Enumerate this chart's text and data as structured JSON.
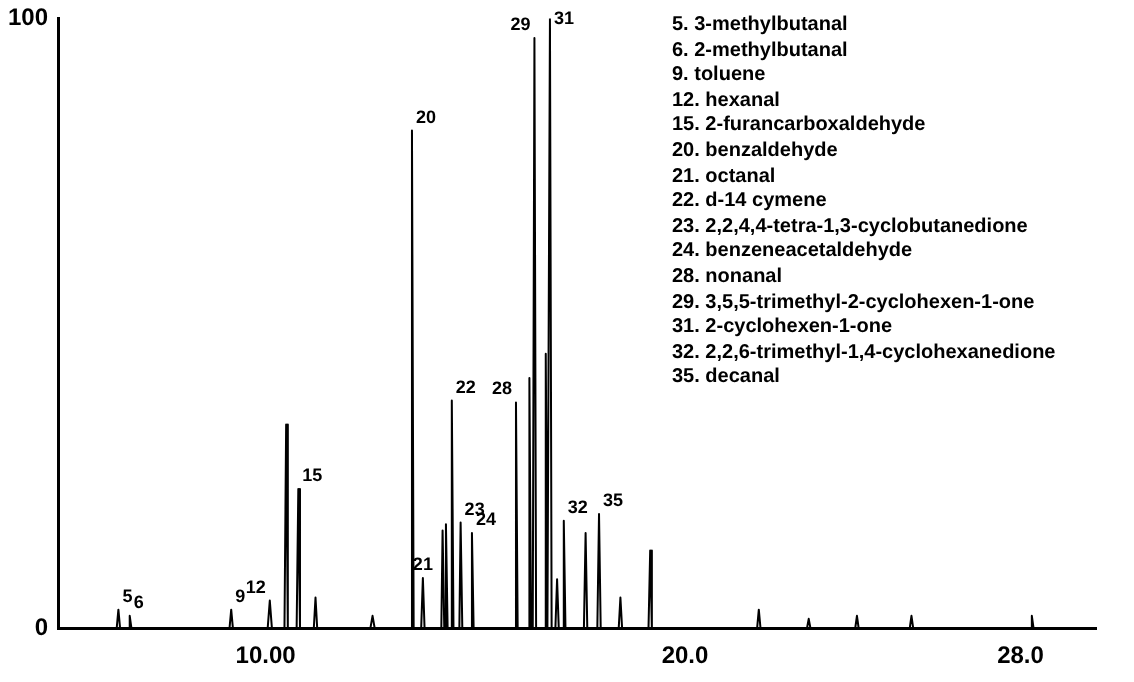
{
  "chart_data": {
    "type": "line",
    "xlim": [
      5.05,
      29.8
    ],
    "ylim": [
      0,
      100
    ],
    "xticks": [
      {
        "value": 10,
        "label": "10.00"
      },
      {
        "value": 20,
        "label": "20.0"
      },
      {
        "value": 28,
        "label": "28.0"
      }
    ],
    "yticks": [
      0,
      100
    ],
    "grid": false,
    "legend": false,
    "marker": "none",
    "line_style": "solid",
    "series": [
      {
        "color": "#000000",
        "x": [
          5.1,
          6.0,
          6.45,
          6.49,
          6.53,
          6.72,
          6.76,
          6.8,
          8.0,
          9.14,
          9.18,
          9.22,
          10.05,
          10.1,
          10.15,
          10.45,
          10.49,
          10.53,
          10.74,
          10.78,
          10.82,
          11.15,
          11.19,
          11.23,
          12.5,
          12.55,
          12.6,
          13.2,
          13.45,
          13.49,
          13.53,
          13.71,
          13.75,
          13.79,
          14.19,
          14.22,
          14.26,
          14.3,
          14.34,
          14.41,
          14.44,
          14.48,
          14.62,
          14.65,
          14.69,
          14.89,
          14.92,
          14.96,
          15.93,
          15.97,
          16.01,
          16.26,
          16.29,
          16.33,
          16.37,
          16.41,
          16.45,
          16.55,
          16.64,
          16.68,
          16.72,
          16.78,
          16.82,
          16.91,
          16.95,
          16.99,
          17.07,
          17.11,
          17.15,
          17.59,
          17.63,
          17.67,
          17.91,
          17.95,
          17.99,
          18.42,
          18.46,
          18.5,
          19.13,
          19.17,
          19.21,
          21.72,
          21.76,
          21.8,
          22.91,
          22.95,
          22.99,
          24.06,
          24.1,
          24.14,
          25.36,
          25.4,
          25.44,
          28.23,
          28.27,
          28.31,
          29.0
        ],
        "values": [
          0,
          0,
          0,
          3,
          0,
          0,
          2,
          0,
          0,
          0,
          3,
          0,
          0,
          4.5,
          0,
          0,
          33.4,
          0,
          0,
          22.8,
          0,
          0,
          5,
          0,
          0,
          2,
          0,
          0,
          0,
          81.6,
          0,
          0,
          8.2,
          0,
          0,
          16,
          0,
          17,
          0,
          0,
          37.3,
          0,
          0,
          17.3,
          0,
          0,
          15.6,
          0,
          0,
          37,
          0,
          0,
          41,
          0,
          0,
          96.8,
          0,
          0,
          0,
          45,
          0,
          100,
          0,
          0,
          8,
          0,
          0,
          17.6,
          0,
          0,
          15.6,
          0,
          0,
          18.7,
          0,
          0,
          5,
          0,
          0,
          12.7,
          0,
          0,
          3,
          0,
          0,
          1.5,
          0,
          0,
          2,
          0,
          0,
          2,
          0,
          0,
          2,
          0,
          0
        ]
      }
    ],
    "annotations": [
      {
        "text": "5",
        "x": 6.49,
        "y": 3
      },
      {
        "text": "6",
        "x": 6.76,
        "y": 2
      },
      {
        "text": "9",
        "x": 9.18,
        "y": 3
      },
      {
        "text": "12",
        "x": 10.1,
        "y": 4.5
      },
      {
        "text": "15",
        "x": 10.78,
        "y": 22.8
      },
      {
        "text": "20",
        "x": 13.49,
        "y": 81.6
      },
      {
        "text": "21",
        "x": 13.75,
        "y": 8.2
      },
      {
        "text": "22",
        "x": 14.44,
        "y": 37.3
      },
      {
        "text": "23",
        "x": 14.65,
        "y": 17.3
      },
      {
        "text": "24",
        "x": 14.92,
        "y": 15.6
      },
      {
        "text": "28",
        "x": 15.97,
        "y": 37
      },
      {
        "text": "29",
        "x": 16.41,
        "y": 96.8
      },
      {
        "text": "31",
        "x": 16.78,
        "y": 100
      },
      {
        "text": "32",
        "x": 17.11,
        "y": 17.6
      },
      {
        "text": "35",
        "x": 17.95,
        "y": 18.7
      },
      "5. 3-methylbutanal",
      "6. 2-methylbutanal",
      "9. toluene",
      "12. hexanal",
      "15. 2-furancarboxaldehyde",
      "20. benzaldehyde",
      "21. octanal",
      "22. d-14 cymene",
      "23. 2,2,4,4-tetra-1,3-cyclobutanedione",
      "24. benzeneacetaldehyde",
      "28. nonanal",
      "29. 3,5,5-trimethyl-2-cyclohexen-1-one",
      "31. 2-cyclohexen-1-one",
      "32. 2,2,6-trimethyl-1,4-cyclohexanedione",
      "35. decanal"
    ]
  }
}
